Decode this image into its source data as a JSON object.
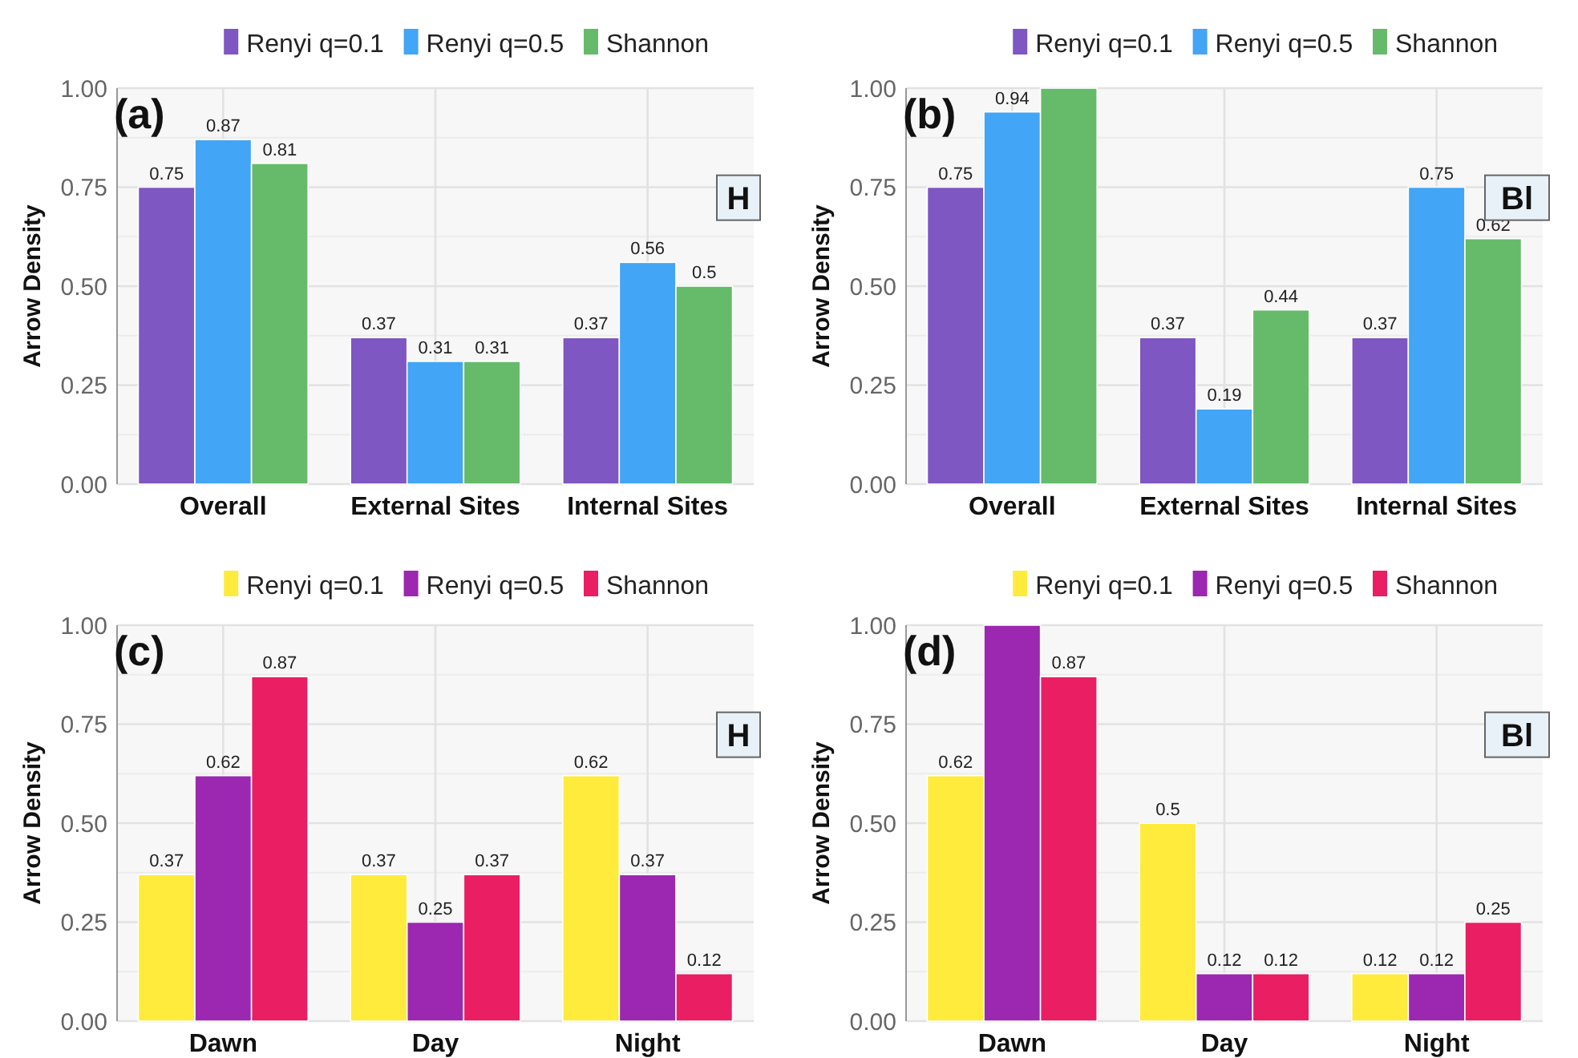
{
  "chart_data": [
    {
      "type": "bar",
      "title": "(a)",
      "ylabel": "Arrow Density",
      "categories": [
        "Overall",
        "External Sites",
        "Internal Sites"
      ],
      "ylim": [
        0,
        1
      ],
      "yticks": [
        "0.00",
        "0.25",
        "0.50",
        "0.75",
        "1.00"
      ],
      "grid": true,
      "legend": "top",
      "annotations": [
        "H"
      ],
      "series": [
        {
          "name": "Renyi q=0.1",
          "color": "#7e57c2",
          "values": [
            0.75,
            0.37,
            0.37
          ],
          "value_labels": [
            "0.75",
            "0.37",
            "0.37"
          ]
        },
        {
          "name": "Renyi q=0.5",
          "color": "#42a5f5",
          "values": [
            0.87,
            0.31,
            0.56
          ],
          "value_labels": [
            "0.87",
            "0.31",
            "0.56"
          ]
        },
        {
          "name": "Shannon",
          "color": "#66bb6a",
          "values": [
            0.81,
            0.31,
            0.5
          ],
          "value_labels": [
            "0.81",
            "0.31",
            "0.5"
          ]
        }
      ]
    },
    {
      "type": "bar",
      "title": "(b)",
      "ylabel": "Arrow Density",
      "categories": [
        "Overall",
        "External Sites",
        "Internal Sites"
      ],
      "ylim": [
        0,
        1
      ],
      "yticks": [
        "0.00",
        "0.25",
        "0.50",
        "0.75",
        "1.00"
      ],
      "grid": true,
      "legend": "top",
      "annotations": [
        "Bl"
      ],
      "series": [
        {
          "name": "Renyi q=0.1",
          "color": "#7e57c2",
          "values": [
            0.75,
            0.37,
            0.37
          ],
          "value_labels": [
            "0.75",
            "0.37",
            "0.37"
          ]
        },
        {
          "name": "Renyi q=0.5",
          "color": "#42a5f5",
          "values": [
            0.94,
            0.19,
            0.75
          ],
          "value_labels": [
            "0.94",
            "0.19",
            "0.75"
          ]
        },
        {
          "name": "Shannon",
          "color": "#66bb6a",
          "values": [
            1.0,
            0.44,
            0.62
          ],
          "value_labels": [
            null,
            "0.44",
            "0.62"
          ]
        }
      ]
    },
    {
      "type": "bar",
      "title": "(c)",
      "ylabel": "Arrow Density",
      "categories": [
        "Dawn",
        "Day",
        "Night"
      ],
      "ylim": [
        0,
        1
      ],
      "yticks": [
        "0.00",
        "0.25",
        "0.50",
        "0.75",
        "1.00"
      ],
      "grid": true,
      "legend": "top",
      "annotations": [
        "H"
      ],
      "series": [
        {
          "name": "Renyi q=0.1",
          "color": "#ffeb3b",
          "values": [
            0.37,
            0.37,
            0.62
          ],
          "value_labels": [
            "0.37",
            "0.37",
            "0.62"
          ]
        },
        {
          "name": "Renyi q=0.5",
          "color": "#9c27b0",
          "values": [
            0.62,
            0.25,
            0.37
          ],
          "value_labels": [
            "0.62",
            "0.25",
            "0.37"
          ]
        },
        {
          "name": "Shannon",
          "color": "#e91e63",
          "values": [
            0.87,
            0.37,
            0.12
          ],
          "value_labels": [
            "0.87",
            "0.37",
            "0.12"
          ]
        }
      ]
    },
    {
      "type": "bar",
      "title": "(d)",
      "ylabel": "Arrow Density",
      "categories": [
        "Dawn",
        "Day",
        "Night"
      ],
      "ylim": [
        0,
        1
      ],
      "yticks": [
        "0.00",
        "0.25",
        "0.50",
        "0.75",
        "1.00"
      ],
      "grid": true,
      "legend": "top",
      "annotations": [
        "Bl"
      ],
      "series": [
        {
          "name": "Renyi q=0.1",
          "color": "#ffeb3b",
          "values": [
            0.62,
            0.5,
            0.12
          ],
          "value_labels": [
            "0.62",
            "0.5",
            "0.12"
          ]
        },
        {
          "name": "Renyi q=0.5",
          "color": "#9c27b0",
          "values": [
            1.0,
            0.12,
            0.12
          ],
          "value_labels": [
            null,
            "0.12",
            "0.12"
          ]
        },
        {
          "name": "Shannon",
          "color": "#e91e63",
          "values": [
            0.87,
            0.12,
            0.25
          ],
          "value_labels": [
            "0.87",
            "0.12",
            "0.25"
          ]
        }
      ]
    }
  ]
}
